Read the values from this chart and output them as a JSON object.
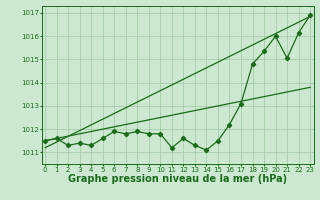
{
  "x": [
    0,
    1,
    2,
    3,
    4,
    5,
    6,
    7,
    8,
    9,
    10,
    11,
    12,
    13,
    14,
    15,
    16,
    17,
    18,
    19,
    20,
    21,
    22,
    23
  ],
  "pressure_line": [
    1011.5,
    1011.6,
    1011.3,
    1011.4,
    1011.3,
    1011.6,
    1011.9,
    1011.8,
    1011.9,
    1011.8,
    1011.8,
    1011.2,
    1011.6,
    1011.3,
    1011.1,
    1011.5,
    1012.2,
    1013.1,
    1014.8,
    1015.35,
    1016.0,
    1015.05,
    1016.15,
    1016.9
  ],
  "trend_line1_x": [
    0,
    23
  ],
  "trend_line1_y": [
    1011.2,
    1016.85
  ],
  "trend_line2_x": [
    0,
    23
  ],
  "trend_line2_y": [
    1011.5,
    1013.8
  ],
  "ylim": [
    1010.5,
    1017.3
  ],
  "xlim": [
    -0.3,
    23.3
  ],
  "yticks": [
    1011,
    1012,
    1013,
    1014,
    1015,
    1016,
    1017
  ],
  "xticks": [
    0,
    1,
    2,
    3,
    4,
    5,
    6,
    7,
    8,
    9,
    10,
    11,
    12,
    13,
    14,
    15,
    16,
    17,
    18,
    19,
    20,
    21,
    22,
    23
  ],
  "xlabel": "Graphe pression niveau de la mer (hPa)",
  "line_color": "#1a6b1a",
  "bg_color": "#cce8d0",
  "grid_color": "#9dc8a4",
  "tick_label_fontsize": 5.0,
  "xlabel_fontsize": 7.0,
  "marker": "D",
  "marker_size": 2.2
}
